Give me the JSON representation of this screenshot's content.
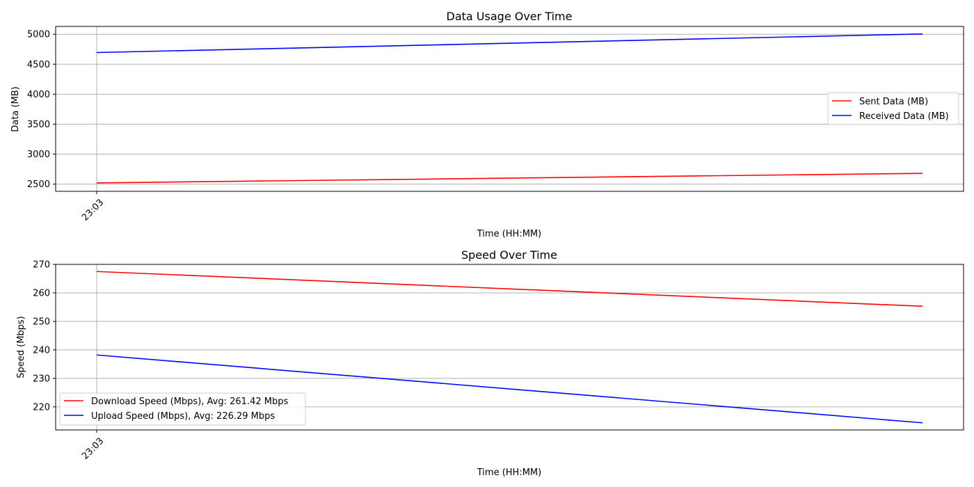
{
  "chart_data": [
    {
      "type": "line",
      "title": "Data Usage Over Time",
      "xlabel": "Time (HH:MM)",
      "ylabel": "Data (MB)",
      "x_tick_labels": [
        "23:03"
      ],
      "ylim": [
        2380,
        5130
      ],
      "yticks": [
        2500,
        3000,
        3500,
        4000,
        4500,
        5000
      ],
      "grid": true,
      "legend_position": "center-right",
      "series": [
        {
          "name": "Sent Data (MB)",
          "color": "#ff0000",
          "values": [
            2520,
            2680
          ]
        },
        {
          "name": "Received Data (MB)",
          "color": "#0000ff",
          "values": [
            4695,
            5005
          ]
        }
      ]
    },
    {
      "type": "line",
      "title": "Speed Over Time",
      "xlabel": "Time (HH:MM)",
      "ylabel": "Speed (Mbps)",
      "x_tick_labels": [
        "23:03"
      ],
      "ylim": [
        211.9,
        270.0
      ],
      "yticks": [
        220,
        230,
        240,
        250,
        260,
        270
      ],
      "grid": true,
      "legend_position": "lower-left",
      "series": [
        {
          "name": "Download Speed (Mbps), Avg: 261.42 Mbps",
          "color": "#ff0000",
          "values": [
            267.5,
            255.3
          ]
        },
        {
          "name": "Upload Speed (Mbps), Avg: 226.29 Mbps",
          "color": "#0000ff",
          "values": [
            238.2,
            214.4
          ]
        }
      ]
    }
  ]
}
